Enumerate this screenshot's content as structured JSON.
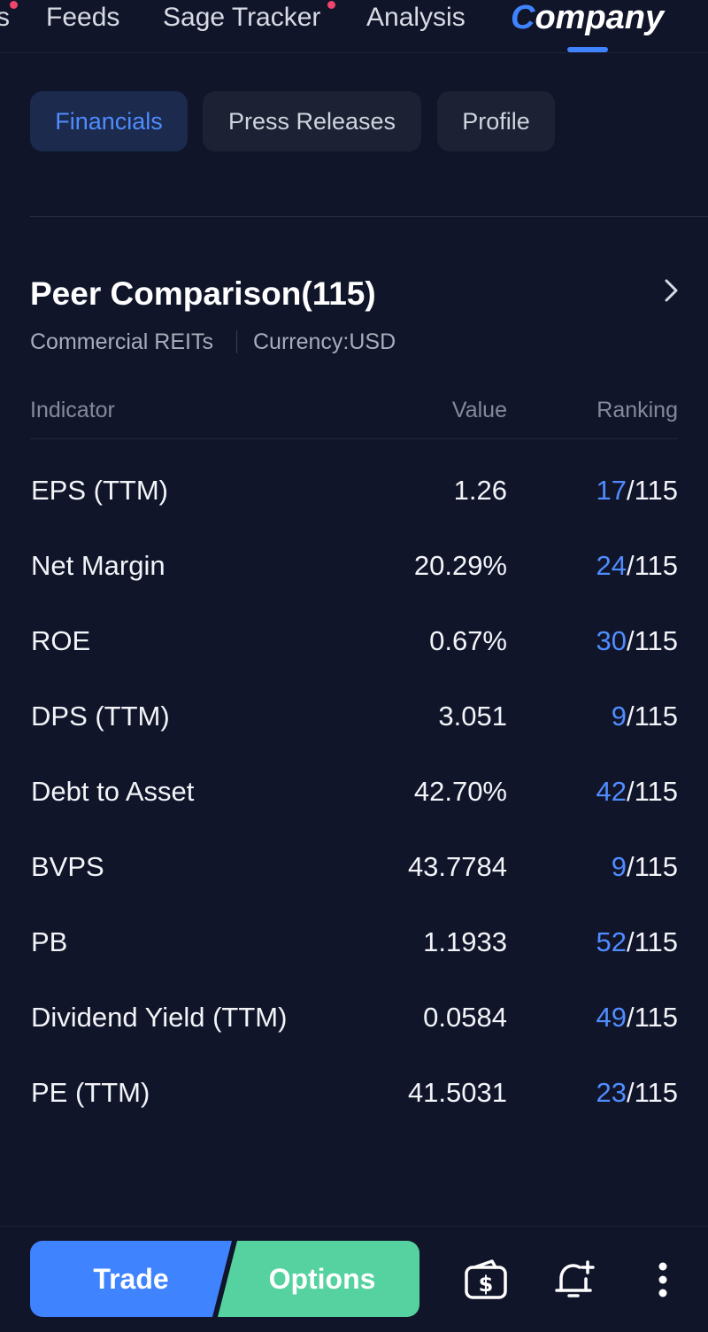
{
  "topnav": {
    "items": [
      {
        "label": "s"
      },
      {
        "label": "Feeds"
      },
      {
        "label": "Sage Tracker"
      },
      {
        "label": "Analysis"
      },
      {
        "label": "Company",
        "label_first": "C",
        "label_rest": "ompany"
      }
    ]
  },
  "subtabs": [
    {
      "label": "Financials"
    },
    {
      "label": "Press Releases"
    },
    {
      "label": "Profile"
    }
  ],
  "peer": {
    "title": "Peer Comparison(115)",
    "sector": "Commercial REITs",
    "currency": "Currency:USD"
  },
  "table": {
    "headers": {
      "indicator": "Indicator",
      "value": "Value",
      "ranking": "Ranking"
    },
    "rows": [
      {
        "indicator": "EPS (TTM)",
        "value": "1.26",
        "rank": "17",
        "total": "/115"
      },
      {
        "indicator": "Net Margin",
        "value": "20.29%",
        "rank": "24",
        "total": "/115"
      },
      {
        "indicator": "ROE",
        "value": "0.67%",
        "rank": "30",
        "total": "/115"
      },
      {
        "indicator": "DPS (TTM)",
        "value": "3.051",
        "rank": "9",
        "total": "/115"
      },
      {
        "indicator": "Debt to Asset",
        "value": "42.70%",
        "rank": "42",
        "total": "/115"
      },
      {
        "indicator": "BVPS",
        "value": "43.7784",
        "rank": "9",
        "total": "/115"
      },
      {
        "indicator": "PB",
        "value": "1.1933",
        "rank": "52",
        "total": "/115"
      },
      {
        "indicator": "Dividend Yield (TTM)",
        "value": "0.0584",
        "rank": "49",
        "total": "/115"
      },
      {
        "indicator": "PE (TTM)",
        "value": "41.5031",
        "rank": "23",
        "total": "/115"
      }
    ]
  },
  "bottombar": {
    "trade_label": "Trade",
    "options_label": "Options",
    "icons": [
      "wallet-dollar-icon",
      "bell-plus-icon",
      "more-vertical-icon"
    ]
  },
  "colors": {
    "background": "#11152a",
    "accent": "#4f8cff",
    "trade": "#3f83ff",
    "options": "#55d2a0",
    "notification_dot": "#f0446a"
  }
}
